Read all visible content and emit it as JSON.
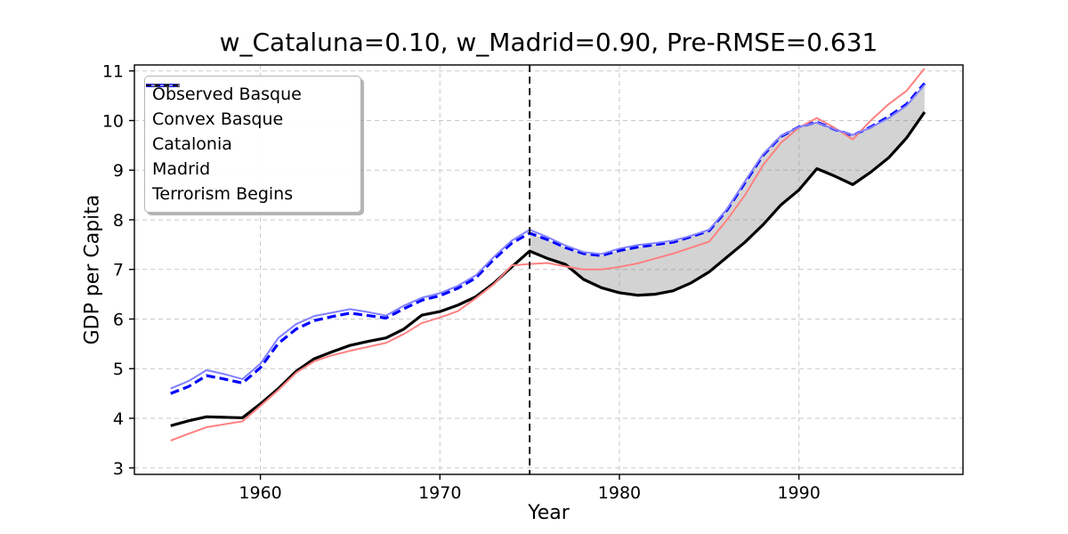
{
  "figure": {
    "title": "w_Cataluna=0.10, w_Madrid=0.90, Pre-RMSE=0.631",
    "xlabel": "Year",
    "ylabel": "GDP per Capita"
  },
  "chart_data": {
    "type": "line",
    "title": "w_Cataluna=0.10, w_Madrid=0.90, Pre-RMSE=0.631",
    "xlabel": "Year",
    "ylabel": "GDP per Capita",
    "x": [
      1955,
      1956,
      1957,
      1958,
      1959,
      1960,
      1961,
      1962,
      1963,
      1964,
      1965,
      1966,
      1967,
      1968,
      1969,
      1970,
      1971,
      1972,
      1973,
      1974,
      1975,
      1976,
      1977,
      1978,
      1979,
      1980,
      1981,
      1982,
      1983,
      1984,
      1985,
      1986,
      1987,
      1988,
      1989,
      1990,
      1991,
      1992,
      1993,
      1994,
      1995,
      1996,
      1997
    ],
    "series": [
      {
        "name": "Observed Basque",
        "color": "#000000",
        "dash": "",
        "width": 3.2,
        "values": [
          3.85,
          3.95,
          4.03,
          4.02,
          4.01,
          4.29,
          4.6,
          4.95,
          5.2,
          5.34,
          5.47,
          5.55,
          5.62,
          5.8,
          6.08,
          6.15,
          6.28,
          6.45,
          6.72,
          7.05,
          7.37,
          7.22,
          7.1,
          6.8,
          6.63,
          6.53,
          6.48,
          6.5,
          6.57,
          6.73,
          6.95,
          7.25,
          7.55,
          7.9,
          8.3,
          8.6,
          9.03,
          8.88,
          8.71,
          8.96,
          9.25,
          9.65,
          10.17
        ]
      },
      {
        "name": "Convex Basque",
        "color": "#0000ff",
        "dash": "10 5",
        "width": 3.2,
        "values": [
          4.5,
          4.64,
          4.86,
          4.79,
          4.71,
          5.02,
          5.51,
          5.8,
          5.97,
          6.05,
          6.12,
          6.07,
          6.02,
          6.21,
          6.38,
          6.47,
          6.62,
          6.83,
          7.2,
          7.53,
          7.73,
          7.6,
          7.44,
          7.32,
          7.28,
          7.38,
          7.45,
          7.5,
          7.55,
          7.66,
          7.78,
          8.2,
          8.75,
          9.3,
          9.68,
          9.87,
          9.97,
          9.82,
          9.7,
          9.87,
          10.08,
          10.33,
          10.75
        ]
      },
      {
        "name": "Catalonia",
        "color": "#ff8080",
        "dash": "",
        "width": 2,
        "values": [
          3.55,
          3.69,
          3.82,
          3.88,
          3.94,
          4.25,
          4.57,
          4.92,
          5.15,
          5.27,
          5.36,
          5.44,
          5.52,
          5.7,
          5.92,
          6.03,
          6.16,
          6.42,
          6.7,
          7.08,
          7.11,
          7.13,
          7.06,
          7.0,
          7.0,
          7.05,
          7.12,
          7.22,
          7.32,
          7.44,
          7.56,
          8.0,
          8.5,
          9.1,
          9.55,
          9.86,
          10.05,
          9.85,
          9.62,
          10.0,
          10.33,
          10.6,
          11.05
        ]
      },
      {
        "name": "Madrid",
        "color": "#8080ff",
        "dash": "",
        "width": 2,
        "values": [
          4.6,
          4.75,
          4.97,
          4.89,
          4.79,
          5.1,
          5.62,
          5.9,
          6.06,
          6.13,
          6.2,
          6.14,
          6.07,
          6.27,
          6.43,
          6.52,
          6.67,
          6.88,
          7.25,
          7.58,
          7.8,
          7.65,
          7.48,
          7.35,
          7.31,
          7.42,
          7.49,
          7.53,
          7.58,
          7.68,
          7.8,
          8.22,
          8.78,
          9.32,
          9.69,
          9.87,
          9.96,
          9.82,
          9.71,
          9.86,
          10.05,
          10.3,
          10.72
        ]
      }
    ],
    "vline": {
      "label": "Terrorism Begins",
      "x": 1975,
      "color": "#000000",
      "dash": "8 5",
      "width": 1.8
    },
    "fill_between": {
      "upper": "Convex Basque",
      "lower": "Observed Basque",
      "x_start": 1975,
      "x_end": 1997,
      "color": "#808080",
      "opacity": 0.35
    },
    "xticks": [
      "1960",
      "1970",
      "1980",
      "1990"
    ],
    "xtick_values": [
      1960,
      1970,
      1980,
      1990
    ],
    "yticks": [
      "3",
      "4",
      "5",
      "6",
      "7",
      "8",
      "9",
      "10",
      "11"
    ],
    "ytick_values": [
      3,
      4,
      5,
      6,
      7,
      8,
      9,
      10,
      11
    ],
    "xlim": [
      1952.98,
      1999.14
    ],
    "ylim": [
      2.87,
      11.12
    ],
    "grid": true,
    "grid_color": "#c8c8c8",
    "legend_position": "upper left",
    "legend_entries": [
      {
        "label": "Observed Basque",
        "color": "#000000",
        "dash": "",
        "width": 3.4
      },
      {
        "label": "Convex Basque",
        "color": "#0000ff",
        "dash": "8 5",
        "width": 3.4
      },
      {
        "label": "Catalonia",
        "color": "#ff8080",
        "dash": "",
        "width": 2
      },
      {
        "label": "Madrid",
        "color": "#8080ff",
        "dash": "",
        "width": 2
      },
      {
        "label": "Terrorism Begins",
        "color": "#000000",
        "dash": "6 4",
        "width": 1.8
      }
    ]
  }
}
